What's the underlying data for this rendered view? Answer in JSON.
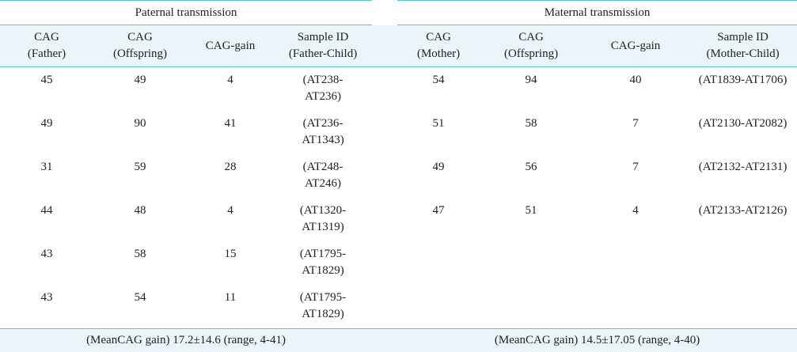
{
  "paternal": {
    "title": "Paternal transmission",
    "headers": [
      [
        "CAG",
        "(Father)"
      ],
      [
        "CAG",
        "(Offspring)"
      ],
      [
        "CAG-gain"
      ],
      [
        "Sample ID",
        "(Father-Child)"
      ]
    ],
    "rows": [
      {
        "parent": "45",
        "offspring": "49",
        "gain": "4",
        "id1": "(AT238-",
        "id2": "AT236)"
      },
      {
        "parent": "49",
        "offspring": "90",
        "gain": "41",
        "id1": "(AT236-",
        "id2": "AT1343)"
      },
      {
        "parent": "31",
        "offspring": "59",
        "gain": "28",
        "id1": "(AT248-",
        "id2": "AT246)"
      },
      {
        "parent": "44",
        "offspring": "48",
        "gain": "4",
        "id1": "(AT1320-",
        "id2": "AT1319)"
      },
      {
        "parent": "43",
        "offspring": "58",
        "gain": "15",
        "id1": "(AT1795-",
        "id2": "AT1829)"
      },
      {
        "parent": "43",
        "offspring": "54",
        "gain": "11",
        "id1": "(AT1795-",
        "id2": "AT1829)"
      }
    ],
    "footer": "(MeanCAG gain) 17.2±14.6 (range, 4-41)"
  },
  "maternal": {
    "title": "Maternal transmission",
    "headers": [
      [
        "CAG",
        "(Mother)"
      ],
      [
        "CAG",
        "(Offspring)"
      ],
      [
        "CAG-gain"
      ],
      [
        "Sample ID",
        "(Mother-Child)"
      ]
    ],
    "rows": [
      {
        "parent": "54",
        "offspring": "94",
        "gain": "40",
        "id": "(AT1839-AT1706)"
      },
      {
        "parent": "51",
        "offspring": "58",
        "gain": "7",
        "id": "(AT2130-AT2082)"
      },
      {
        "parent": "49",
        "offspring": "56",
        "gain": "7",
        "id": "(AT2132-AT2131)"
      },
      {
        "parent": "47",
        "offspring": "51",
        "gain": "4",
        "id": "(AT2133-AT2126)"
      }
    ],
    "footer": "(MeanCAG gain) 14.5±17.05 (range, 4-40)"
  }
}
